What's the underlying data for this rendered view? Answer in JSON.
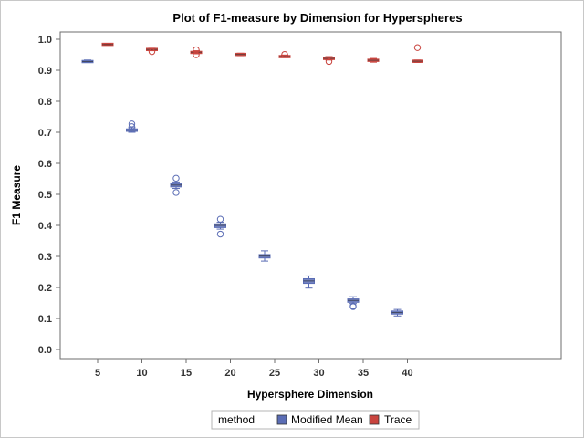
{
  "chart_data": {
    "type": "box",
    "title": "Plot of F1-measure by Dimension for Hyperspheres",
    "xlabel": "Hypersphere Dimension",
    "ylabel": "F1 Measure",
    "x_ticks": [
      5,
      10,
      15,
      20,
      25,
      30,
      35,
      40
    ],
    "y_ticks": [
      "0.0",
      "0.1",
      "0.2",
      "0.3",
      "0.4",
      "0.5",
      "0.6",
      "0.7",
      "0.8",
      "0.9",
      "1.0"
    ],
    "ylim": [
      0,
      1
    ],
    "legend": {
      "title": "method",
      "placement": "bottom-center"
    },
    "series": [
      {
        "name": "Modified Mean",
        "color": "#5b6db5",
        "boxes": [
          {
            "x": 5,
            "min": 0.925,
            "q1": 0.925,
            "median": 0.928,
            "q3": 0.931,
            "max": 0.933,
            "outliers": []
          },
          {
            "x": 10,
            "min": 0.7,
            "q1": 0.703,
            "median": 0.707,
            "q3": 0.711,
            "max": 0.715,
            "outliers": [
              0.727,
              0.718
            ]
          },
          {
            "x": 15,
            "min": 0.519,
            "q1": 0.524,
            "median": 0.53,
            "q3": 0.535,
            "max": 0.54,
            "outliers": [
              0.552,
              0.506
            ]
          },
          {
            "x": 20,
            "min": 0.388,
            "q1": 0.393,
            "median": 0.4,
            "q3": 0.405,
            "max": 0.41,
            "outliers": [
              0.42,
              0.372
            ]
          },
          {
            "x": 25,
            "min": 0.285,
            "q1": 0.295,
            "median": 0.301,
            "q3": 0.306,
            "max": 0.318,
            "outliers": []
          },
          {
            "x": 30,
            "min": 0.198,
            "q1": 0.213,
            "median": 0.221,
            "q3": 0.228,
            "max": 0.237,
            "outliers": []
          },
          {
            "x": 35,
            "min": 0.148,
            "q1": 0.152,
            "median": 0.158,
            "q3": 0.163,
            "max": 0.17,
            "outliers": [
              0.138,
              0.14
            ]
          },
          {
            "x": 40,
            "min": 0.108,
            "q1": 0.114,
            "median": 0.119,
            "q3": 0.124,
            "max": 0.129,
            "outliers": []
          }
        ]
      },
      {
        "name": "Trace",
        "color": "#c9443e",
        "boxes": [
          {
            "x": 5,
            "min": 0.982,
            "q1": 0.982,
            "median": 0.983,
            "q3": 0.985,
            "max": 0.986,
            "outliers": []
          },
          {
            "x": 10,
            "min": 0.963,
            "q1": 0.965,
            "median": 0.967,
            "q3": 0.969,
            "max": 0.971,
            "outliers": [
              0.96
            ]
          },
          {
            "x": 15,
            "min": 0.953,
            "q1": 0.955,
            "median": 0.958,
            "q3": 0.96,
            "max": 0.963,
            "outliers": [
              0.966,
              0.95
            ]
          },
          {
            "x": 20,
            "min": 0.947,
            "q1": 0.949,
            "median": 0.951,
            "q3": 0.953,
            "max": 0.955,
            "outliers": []
          },
          {
            "x": 25,
            "min": 0.941,
            "q1": 0.942,
            "median": 0.944,
            "q3": 0.946,
            "max": 0.949,
            "outliers": [
              0.951
            ]
          },
          {
            "x": 30,
            "min": 0.933,
            "q1": 0.935,
            "median": 0.938,
            "q3": 0.941,
            "max": 0.944,
            "outliers": [
              0.928
            ]
          },
          {
            "x": 35,
            "min": 0.926,
            "q1": 0.929,
            "median": 0.932,
            "q3": 0.935,
            "max": 0.938,
            "outliers": []
          },
          {
            "x": 40,
            "min": 0.925,
            "q1": 0.927,
            "median": 0.929,
            "q3": 0.931,
            "max": 0.933,
            "outliers": [
              0.973
            ]
          }
        ]
      }
    ]
  }
}
